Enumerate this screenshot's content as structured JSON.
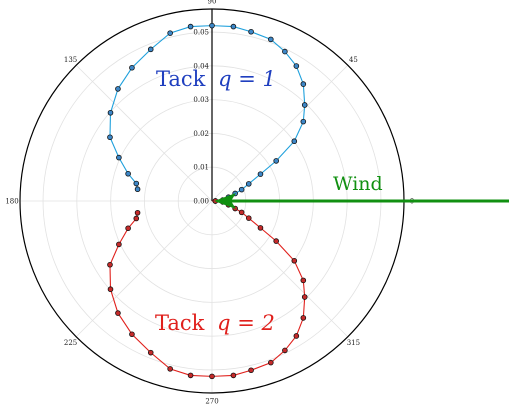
{
  "chart_data": {
    "type": "scatter",
    "coordinate_system": "polar",
    "angle_unit": "degrees",
    "r_range": [
      0,
      0.05
    ],
    "r_ticks": [
      "0.00",
      "0.01",
      "0.02",
      "0.03",
      "0.04",
      "0.05"
    ],
    "angle_ticks": [
      "0",
      "45",
      "90",
      "135",
      "180",
      "225",
      "270",
      "315"
    ],
    "grid": true,
    "series": [
      {
        "name": "Tack q = 1",
        "label_text": "Tack",
        "label_math": "q = 1",
        "color": "#1fa0dc",
        "label_color": "#1f3fbf",
        "marker_color": "#3d87c8",
        "points": [
          {
            "theta": 1,
            "r": 0.001
          },
          {
            "theta": 5,
            "r": 0.0032
          },
          {
            "theta": 13,
            "r": 0.005
          },
          {
            "theta": 18,
            "r": 0.0072
          },
          {
            "theta": 21,
            "r": 0.0094
          },
          {
            "theta": 25,
            "r": 0.012
          },
          {
            "theta": 29,
            "r": 0.0164
          },
          {
            "theta": 32,
            "r": 0.0224
          },
          {
            "theta": 36,
            "r": 0.0301
          },
          {
            "theta": 41,
            "r": 0.0358
          },
          {
            "theta": 46,
            "r": 0.0395
          },
          {
            "theta": 52,
            "r": 0.0439
          },
          {
            "theta": 58,
            "r": 0.0471
          },
          {
            "theta": 64,
            "r": 0.0492
          },
          {
            "theta": 70,
            "r": 0.0509
          },
          {
            "theta": 77,
            "r": 0.0514
          },
          {
            "theta": 83,
            "r": 0.052
          },
          {
            "theta": 90,
            "r": 0.0519
          },
          {
            "theta": 97,
            "r": 0.052
          },
          {
            "theta": 104,
            "r": 0.0512
          },
          {
            "theta": 112,
            "r": 0.0484
          },
          {
            "theta": 121,
            "r": 0.046
          },
          {
            "theta": 130,
            "r": 0.0433
          },
          {
            "theta": 139,
            "r": 0.0398
          },
          {
            "theta": 148,
            "r": 0.0356
          },
          {
            "theta": 155,
            "r": 0.0304
          },
          {
            "theta": 162,
            "r": 0.0261
          },
          {
            "theta": 167,
            "r": 0.023
          },
          {
            "theta": 171,
            "r": 0.0223
          }
        ]
      },
      {
        "name": "Tack q = 2",
        "label_text": "Tack",
        "label_math": "q = 2",
        "color": "#e0201c",
        "label_color": "#e0201c",
        "marker_color": "#c62a2a",
        "points": [
          {
            "theta": 359,
            "r": 0.001
          },
          {
            "theta": 355,
            "r": 0.0032
          },
          {
            "theta": 347,
            "r": 0.005
          },
          {
            "theta": 342,
            "r": 0.0072
          },
          {
            "theta": 339,
            "r": 0.0094
          },
          {
            "theta": 335,
            "r": 0.012
          },
          {
            "theta": 331,
            "r": 0.0164
          },
          {
            "theta": 328,
            "r": 0.0224
          },
          {
            "theta": 324,
            "r": 0.0301
          },
          {
            "theta": 319,
            "r": 0.0358
          },
          {
            "theta": 314,
            "r": 0.0395
          },
          {
            "theta": 308,
            "r": 0.0439
          },
          {
            "theta": 302,
            "r": 0.0471
          },
          {
            "theta": 296,
            "r": 0.0492
          },
          {
            "theta": 290,
            "r": 0.0509
          },
          {
            "theta": 283,
            "r": 0.0514
          },
          {
            "theta": 277,
            "r": 0.052
          },
          {
            "theta": 270,
            "r": 0.0519
          },
          {
            "theta": 263,
            "r": 0.052
          },
          {
            "theta": 256,
            "r": 0.0512
          },
          {
            "theta": 248,
            "r": 0.0484
          },
          {
            "theta": 239,
            "r": 0.046
          },
          {
            "theta": 230,
            "r": 0.0433
          },
          {
            "theta": 221,
            "r": 0.0398
          },
          {
            "theta": 212,
            "r": 0.0356
          },
          {
            "theta": 205,
            "r": 0.0304
          },
          {
            "theta": 198,
            "r": 0.0261
          },
          {
            "theta": 193,
            "r": 0.023
          },
          {
            "theta": 189,
            "r": 0.0223
          }
        ]
      }
    ],
    "annotations": [
      {
        "text": "Wind",
        "color": "#119011",
        "type": "arrow",
        "direction_theta": 0
      }
    ]
  }
}
